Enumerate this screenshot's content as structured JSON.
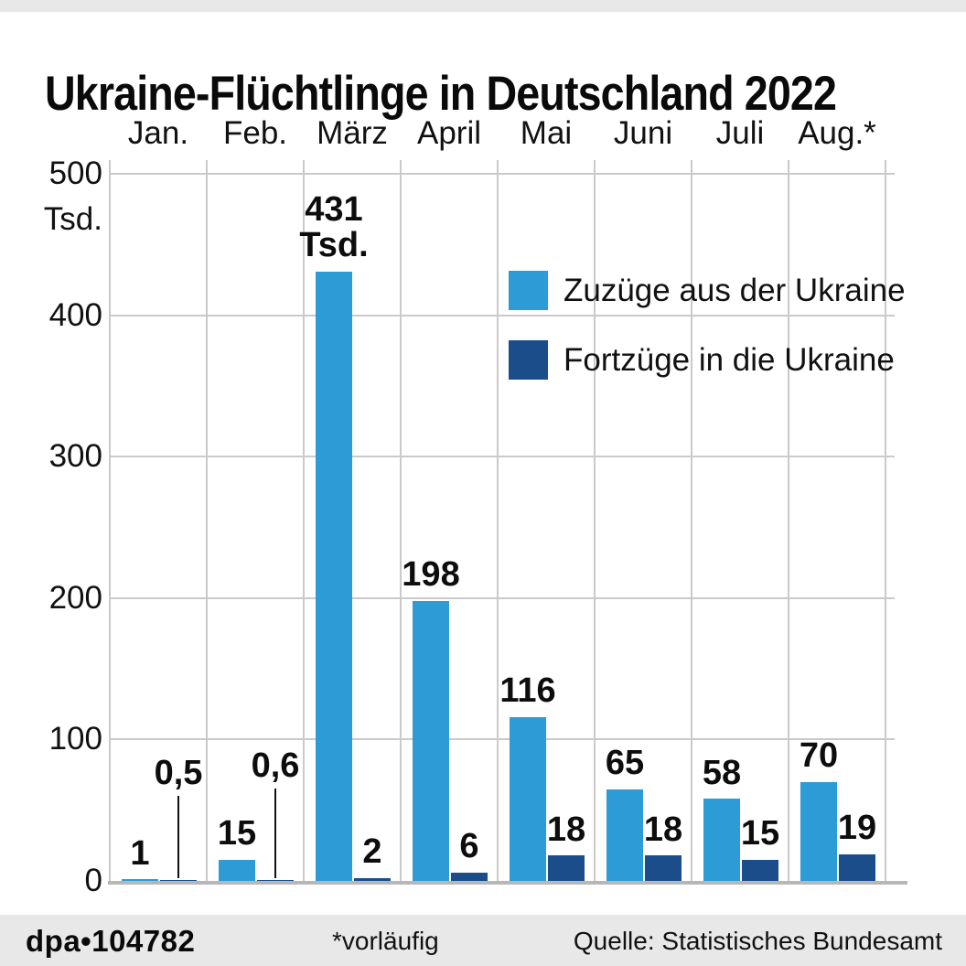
{
  "chart_data": {
    "type": "bar",
    "title": "Ukraine-Flüchtlinge in Deutschland 2022",
    "categories": [
      "Jan.",
      "Feb.",
      "März",
      "April",
      "Mai",
      "Juni",
      "Juli",
      "Aug.*"
    ],
    "series": [
      {
        "name": "Zuzüge aus der Ukraine",
        "color": "#2d9bd5",
        "values": [
          1,
          15,
          431,
          198,
          116,
          65,
          58,
          70
        ],
        "labels": [
          "1",
          "15",
          "431\nTsd.",
          "198",
          "116",
          "65",
          "58",
          "70"
        ]
      },
      {
        "name": "Fortzüge in die Ukraine",
        "color": "#1b4d8a",
        "values": [
          0.5,
          0.6,
          2,
          6,
          18,
          18,
          15,
          19
        ],
        "labels": [
          "0,5",
          "0,6",
          "2",
          "6",
          "18",
          "18",
          "15",
          "19"
        ]
      }
    ],
    "y_axis": {
      "ticks": [
        0,
        100,
        200,
        300,
        400,
        500
      ],
      "unit_label": "Tsd.",
      "min": 0,
      "max": 500
    },
    "grid": true,
    "legend_position": "top-right"
  },
  "footer": {
    "credit": "dpa•104782",
    "note": "*vorläufig",
    "source": "Quelle: Statistisches Bundesamt"
  },
  "colors": {
    "zuzuege": "#2d9bd5",
    "fortzuege": "#1b4d8a",
    "grid": "#cacaca",
    "band": "#e8e8e8",
    "text": "#0d0d0d"
  }
}
